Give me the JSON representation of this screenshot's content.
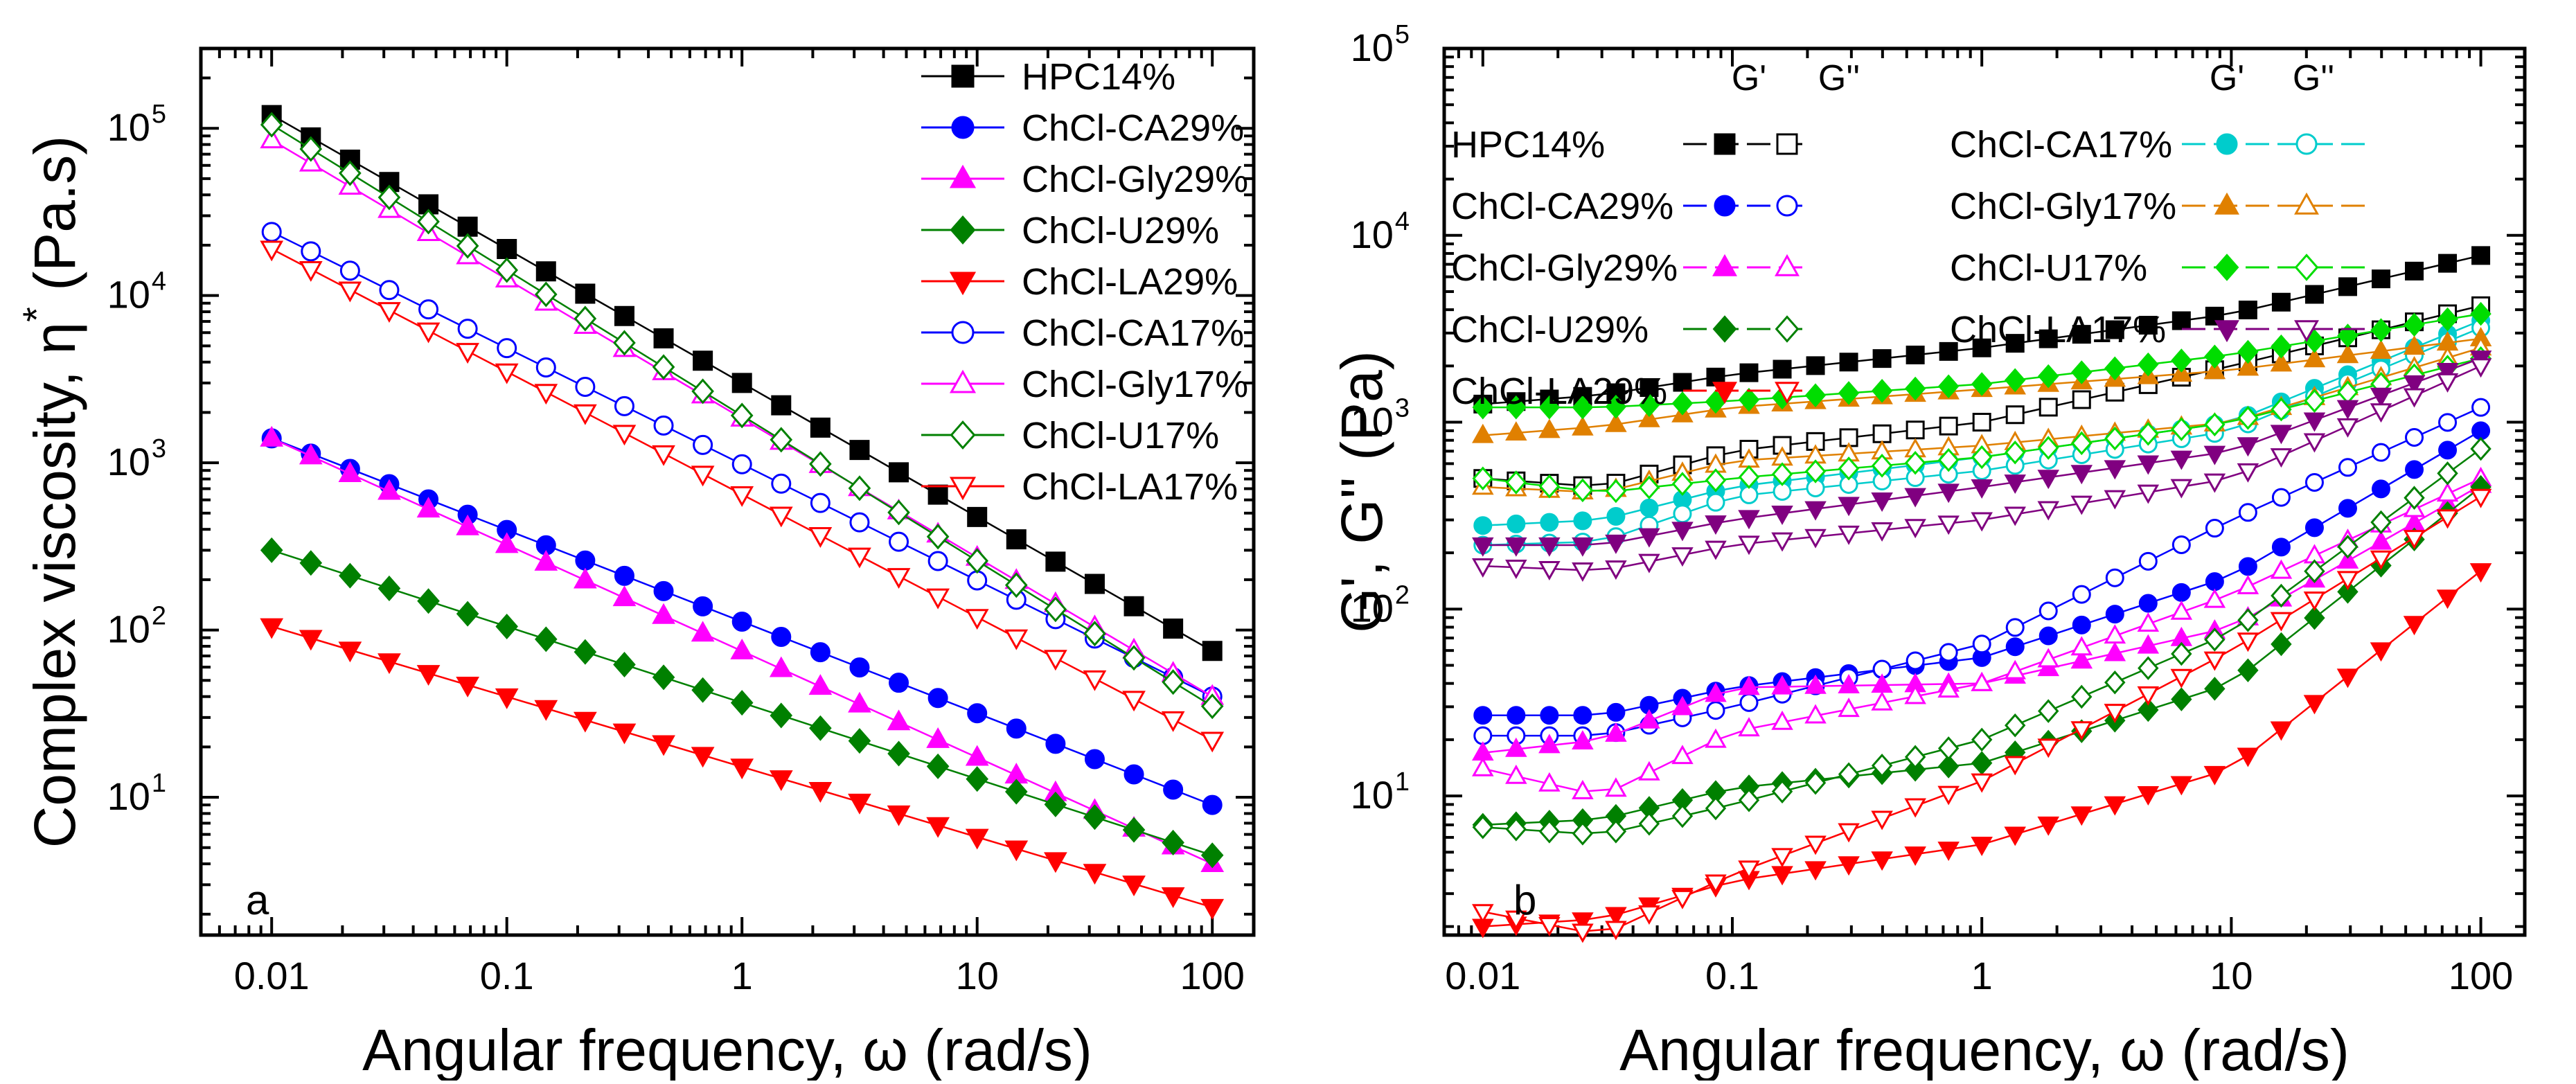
{
  "chart_data": [
    {
      "type": "line",
      "panel": "a",
      "title": "",
      "xlabel": "Angular frequency, ω (rad/s)",
      "ylabel": "Complex viscosity, η* (Pa.s)",
      "ylabel_main": "Complex viscosity, η",
      "ylabel_sup": "*",
      "ylabel_unit": " (Pa.s)",
      "xscale": "log",
      "yscale": "log",
      "xlim": [
        0.005,
        150
      ],
      "ylim": [
        1.5,
        300000
      ],
      "xticks": [
        0.01,
        0.1,
        1,
        10,
        100
      ],
      "xtick_labels": [
        "0.01",
        "0.1",
        "1",
        "10",
        "100"
      ],
      "yticks": [
        10,
        100,
        1000,
        10000,
        100000
      ],
      "ytick_base": "10",
      "ytick_exps": [
        "1",
        "2",
        "3",
        "4",
        "5"
      ],
      "annotation": "a",
      "legend_position": "top-right",
      "series": [
        {
          "name": "HPC14%",
          "color": "#000000",
          "marker": "square",
          "filled": true,
          "start": 120000,
          "end": 75
        },
        {
          "name": "ChCl-CA29%",
          "color": "#0000ff",
          "marker": "circle",
          "filled": true,
          "start": 1400,
          "end": 9
        },
        {
          "name": "ChCl-Gly29%",
          "color": "#ff00ff",
          "marker": "triangle-up",
          "filled": true,
          "start": 1400,
          "end": 4
        },
        {
          "name": "ChCl-U29%",
          "color": "#008000",
          "marker": "diamond",
          "filled": true,
          "start": 300,
          "end": 4.5
        },
        {
          "name": "ChCl-LA29%",
          "color": "#ff0000",
          "marker": "triangle-down",
          "filled": true,
          "start": 105,
          "end": 2.2
        },
        {
          "name": "ChCl-CA17%",
          "color": "#0000ff",
          "marker": "circle",
          "filled": false,
          "start": 24000,
          "end": 40
        },
        {
          "name": "ChCl-Gly17%",
          "color": "#ff00ff",
          "marker": "triangle-up",
          "filled": false,
          "start": 85000,
          "end": 40
        },
        {
          "name": "ChCl-U17%",
          "color": "#008000",
          "marker": "diamond",
          "filled": false,
          "start": 105000,
          "end": 35
        },
        {
          "name": "ChCl-LA17%",
          "color": "#ff0000",
          "marker": "triangle-down",
          "filled": false,
          "start": 19000,
          "end": 22
        }
      ]
    },
    {
      "type": "line",
      "panel": "b",
      "title": "",
      "xlabel": "Angular frequency, ω (rad/s)",
      "ylabel": "G', G'' (Pa)",
      "xscale": "log",
      "yscale": "log",
      "xlim": [
        0.007,
        150
      ],
      "ylim": [
        1.8,
        100000
      ],
      "xticks": [
        0.01,
        0.1,
        1,
        10,
        100
      ],
      "xtick_labels": [
        "0.01",
        "0.1",
        "1",
        "10",
        "100"
      ],
      "yticks": [
        10,
        100,
        1000,
        10000,
        100000
      ],
      "ytick_base": "10",
      "ytick_exps": [
        "1",
        "2",
        "3",
        "4",
        "5"
      ],
      "annotation": "b",
      "legend_header_g1": "G'",
      "legend_header_g2": "G''",
      "legend_position": "top",
      "series": [
        {
          "name": "HPC14%",
          "color": "#000000",
          "marker": "square",
          "gp": [
            1250,
            1400,
            1800,
            2500,
            3800,
            7800
          ],
          "gpp": [
            500,
            450,
            700,
            1000,
            2000,
            4200
          ]
        },
        {
          "name": "ChCl-CA29%",
          "color": "#0000ff",
          "marker": "circle",
          "gp": [
            27,
            27,
            38,
            55,
            150,
            900
          ],
          "gpp": [
            21,
            21,
            30,
            65,
            300,
            1200
          ]
        },
        {
          "name": "ChCl-Gly29%",
          "color": "#ff00ff",
          "marker": "triangle-up",
          "gp": [
            17,
            20,
            38,
            40,
            80,
            460
          ],
          "gpp": [
            14,
            10,
            22,
            40,
            120,
            500
          ]
        },
        {
          "name": "ChCl-U29%",
          "color": "#008000",
          "marker": "diamond",
          "gp": [
            7,
            7.5,
            11,
            15,
            40,
            450
          ],
          "gpp": [
            6.8,
            6.2,
            9,
            20,
            75,
            720
          ]
        },
        {
          "name": "ChCl-LA29%",
          "color": "#ff0000",
          "marker": "triangle-down",
          "gp": [
            2,
            2.2,
            3.5,
            5.5,
            14,
            160
          ],
          "gpp": [
            2.4,
            1.8,
            3.8,
            12,
            60,
            400
          ]
        },
        {
          "name": "ChCl-CA17%",
          "color": "#00cccc",
          "marker": "circle",
          "gp": [
            280,
            300,
            450,
            650,
            1000,
            3500
          ],
          "gpp": [
            220,
            230,
            400,
            550,
            900,
            3200
          ]
        },
        {
          "name": "ChCl-Gly17%",
          "color": "#e08000",
          "marker": "triangle-up",
          "gp": [
            850,
            950,
            1200,
            1500,
            1900,
            2800
          ],
          "gpp": [
            450,
            420,
            620,
            750,
            1000,
            2500
          ]
        },
        {
          "name": "ChCl-U17%",
          "color": "#00dd00",
          "marker": "diamond",
          "gp": [
            1200,
            1200,
            1300,
            1600,
            2300,
            3800
          ],
          "gpp": [
            500,
            420,
            500,
            650,
            1000,
            2200
          ]
        },
        {
          "name": "ChCl-LA17%",
          "color": "#800080",
          "marker": "triangle-down",
          "gp": [
            220,
            220,
            300,
            450,
            700,
            2200
          ],
          "gpp": [
            170,
            160,
            220,
            300,
            500,
            2000
          ]
        }
      ]
    }
  ]
}
